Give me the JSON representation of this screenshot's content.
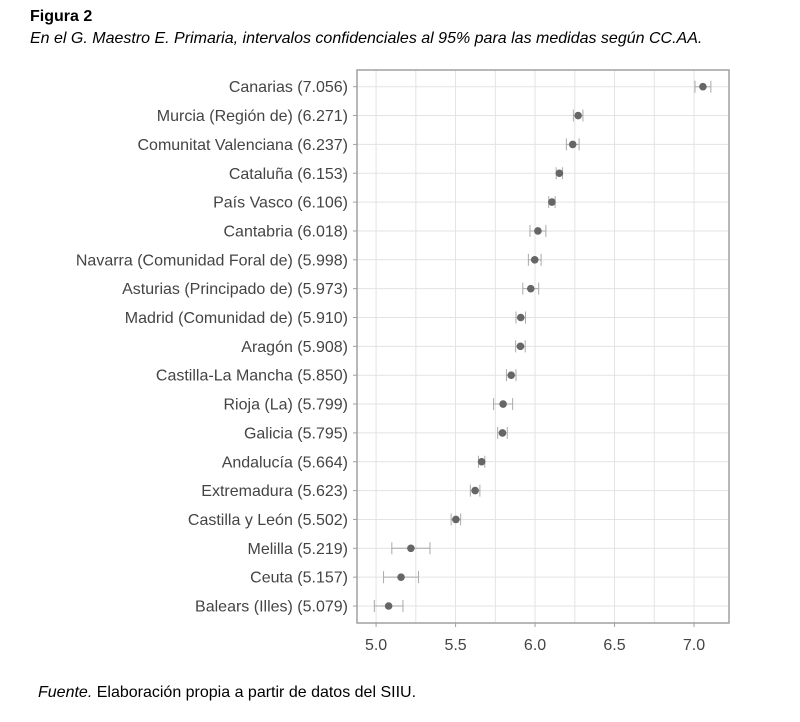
{
  "figure_label": "Figura 2",
  "caption": "En el G. Maestro E. Primaria, intervalos confidenciales al 95% para las medidas según CC.AA.",
  "source_label": "Fuente.",
  "source_text": " Elaboración propia a partir de datos del SIIU.",
  "chart_data": {
    "type": "scatter",
    "subtype": "dot-plot with 95% confidence intervals",
    "title": "",
    "xlabel": "",
    "ylabel": "",
    "xlim": [
      4.88,
      7.22
    ],
    "xticks": [
      5.0,
      5.5,
      6.0,
      6.5,
      7.0
    ],
    "xtick_labels": [
      "5.0",
      "5.5",
      "6.0",
      "6.5",
      "7.0"
    ],
    "grid": true,
    "categories": [
      "Canarias (7.056)",
      "Murcia (Región de) (6.271)",
      "Comunitat Valenciana (6.237)",
      "Cataluña (6.153)",
      "País Vasco (6.106)",
      "Cantabria (6.018)",
      "Navarra (Comunidad Foral de) (5.998)",
      "Asturias (Principado de) (5.973)",
      "Madrid (Comunidad de) (5.910)",
      "Aragón (5.908)",
      "Castilla-La Mancha (5.850)",
      "Rioja (La) (5.799)",
      "Galicia (5.795)",
      "Andalucía (5.664)",
      "Extremadura (5.623)",
      "Castilla y León (5.502)",
      "Melilla (5.219)",
      "Ceuta (5.157)",
      "Balears (Illes) (5.079)"
    ],
    "values": [
      7.056,
      6.271,
      6.237,
      6.153,
      6.106,
      6.018,
      5.998,
      5.973,
      5.91,
      5.908,
      5.85,
      5.799,
      5.795,
      5.664,
      5.623,
      5.502,
      5.219,
      5.157,
      5.079
    ],
    "ci_lower": [
      7.006,
      6.241,
      6.197,
      6.133,
      6.086,
      5.968,
      5.958,
      5.923,
      5.88,
      5.878,
      5.82,
      5.739,
      5.765,
      5.644,
      5.593,
      5.472,
      5.099,
      5.047,
      4.989
    ],
    "ci_upper": [
      7.106,
      6.301,
      6.277,
      6.173,
      6.126,
      6.068,
      6.038,
      6.023,
      5.94,
      5.938,
      5.88,
      5.859,
      5.825,
      5.684,
      5.653,
      5.532,
      5.339,
      5.267,
      5.169
    ],
    "colors": {
      "point": "#666666",
      "ci": "#aaaaaa",
      "grid": "#e3e3e3",
      "frame": "#a0a0a0",
      "text": "#444444"
    }
  }
}
